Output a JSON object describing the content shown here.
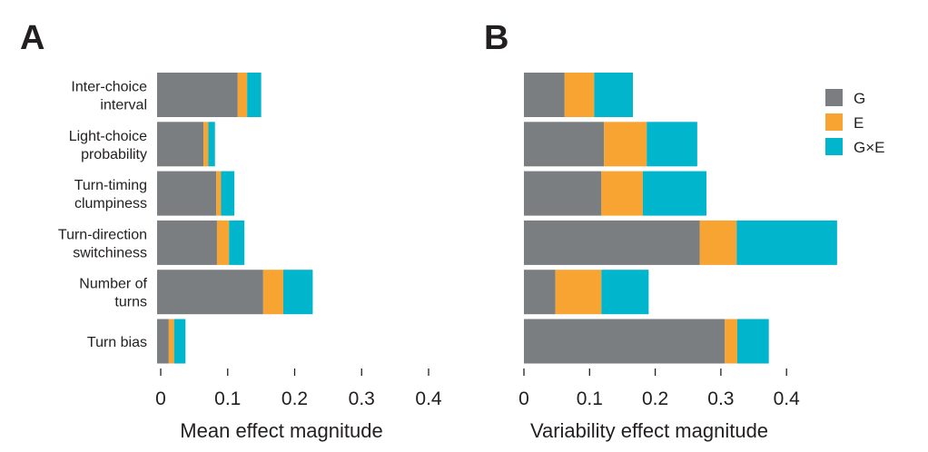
{
  "chart_data": [
    {
      "type": "bar",
      "orientation": "horizontal",
      "stacked": true,
      "panel": "A",
      "title": "",
      "xlabel": "Mean effect magnitude",
      "ylabel": "",
      "xlim": [
        0,
        0.45
      ],
      "xticks": [
        0,
        0.1,
        0.2,
        0.3,
        0.4
      ],
      "xtick_labels": [
        "0",
        "0.1",
        "0.2",
        "0.3",
        "0.4"
      ],
      "categories": [
        "Inter-choice\ninterval",
        "Light-choice\nprobability",
        "Turn-timing\nclumpiness",
        "Turn-direction\nswitchiness",
        "Number of\nturns",
        "Turn bias"
      ],
      "series": [
        {
          "name": "G",
          "color": "#7a7e80",
          "values": [
            0.115,
            0.064,
            0.083,
            0.084,
            0.153,
            0.012
          ]
        },
        {
          "name": "E",
          "color": "#f7a433",
          "values": [
            0.014,
            0.007,
            0.007,
            0.018,
            0.03,
            0.008
          ]
        },
        {
          "name": "G×E",
          "color": "#00b5cc",
          "values": [
            0.021,
            0.01,
            0.02,
            0.023,
            0.044,
            0.017
          ]
        }
      ],
      "grid": false
    },
    {
      "type": "bar",
      "orientation": "horizontal",
      "stacked": true,
      "panel": "B",
      "title": "",
      "xlabel": "Variability effect magnitude",
      "ylabel": "",
      "xlim": [
        0,
        0.48
      ],
      "xticks": [
        0,
        0.1,
        0.2,
        0.3,
        0.4
      ],
      "xtick_labels": [
        "0",
        "0.1",
        "0.2",
        "0.3",
        "0.4"
      ],
      "categories": [
        "Inter-choice\ninterval",
        "Light-choice\nprobability",
        "Turn-timing\nclumpiness",
        "Turn-direction\nswitchiness",
        "Number of\nturns",
        "Turn bias"
      ],
      "series": [
        {
          "name": "G",
          "color": "#7a7e80",
          "values": [
            0.062,
            0.122,
            0.118,
            0.268,
            0.048,
            0.306
          ]
        },
        {
          "name": "E",
          "color": "#f7a433",
          "values": [
            0.045,
            0.065,
            0.063,
            0.056,
            0.07,
            0.019
          ]
        },
        {
          "name": "G×E",
          "color": "#00b5cc",
          "values": [
            0.059,
            0.077,
            0.097,
            0.153,
            0.072,
            0.048
          ]
        }
      ],
      "legend": {
        "position": "top-right",
        "entries": [
          "G",
          "E",
          "G×E"
        ]
      },
      "grid": false
    }
  ]
}
